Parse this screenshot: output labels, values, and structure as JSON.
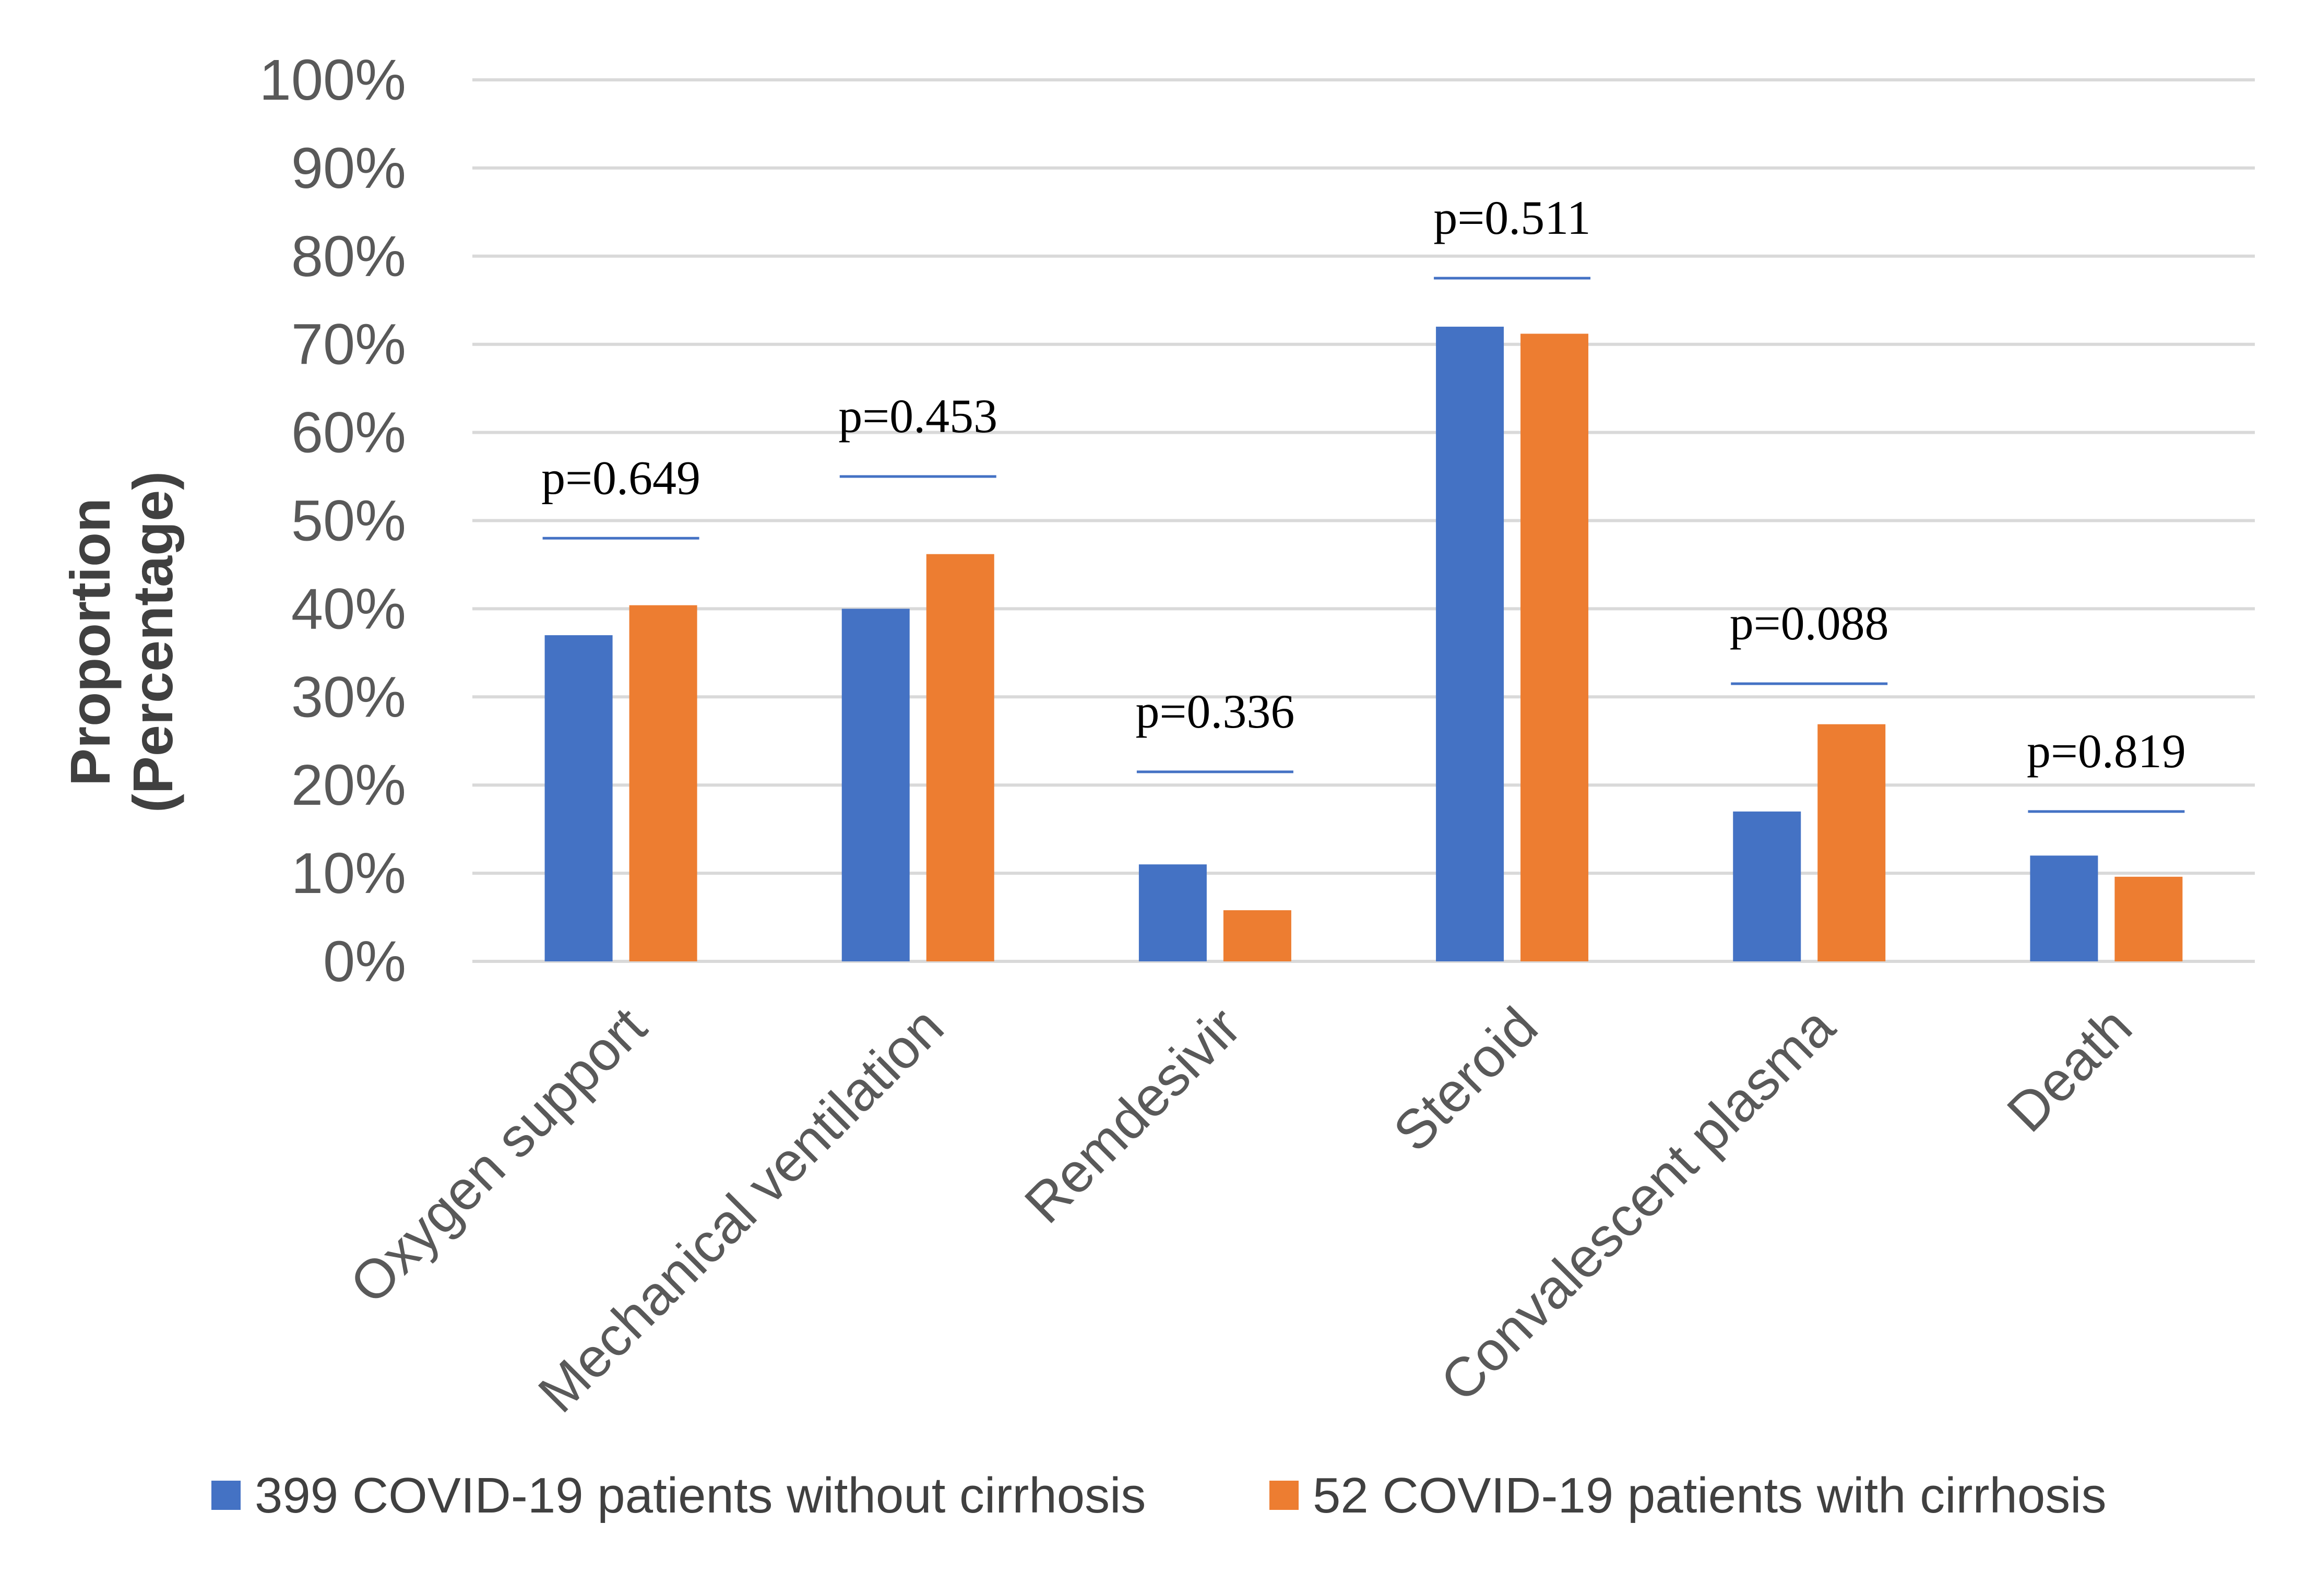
{
  "chart_data": {
    "type": "bar",
    "title": "",
    "xlabel": "",
    "ylabel": "Proportion (Percentage)",
    "ylabel_lines": [
      "Proportion",
      "(Percentage)"
    ],
    "ylim": [
      0,
      100
    ],
    "yticks": [
      0,
      10,
      20,
      30,
      40,
      50,
      60,
      70,
      80,
      90,
      100
    ],
    "ytick_labels": [
      "0%",
      "10%",
      "20%",
      "30%",
      "40%",
      "50%",
      "60%",
      "70%",
      "80%",
      "90%",
      "100%"
    ],
    "grid": true,
    "categories": [
      "Oxygen support",
      "Mechanical ventilation",
      "Remdesivir",
      "Steroid",
      "Convalescent plasma",
      "Death"
    ],
    "series": [
      {
        "name": "399 COVID-19 patients without cirrhosis",
        "color": "#4472C4",
        "values": [
          37,
          40,
          11,
          72,
          17,
          12
        ]
      },
      {
        "name": "52 COVID-19 patients with cirrhosis",
        "color": "#ED7D31",
        "values": [
          40.4,
          46.2,
          5.8,
          71.2,
          26.9,
          9.6
        ]
      }
    ],
    "annotations": [
      {
        "category": "Oxygen support",
        "text": "p=0.649",
        "line_value": 48
      },
      {
        "category": "Mechanical ventilation",
        "text": "p=0.453",
        "line_value": 55
      },
      {
        "category": "Remdesivir",
        "text": "p=0.336",
        "line_value": 21.5
      },
      {
        "category": "Steroid",
        "text": "p=0.511",
        "line_value": 77.5
      },
      {
        "category": "Convalescent plasma",
        "text": "p=0.088",
        "line_value": 31.5
      },
      {
        "category": "Death",
        "text": "p=0.819",
        "line_value": 17
      }
    ],
    "legend_position": "bottom",
    "grid_color": "#D9D9D9",
    "annotation_line_color": "#4472C4"
  }
}
